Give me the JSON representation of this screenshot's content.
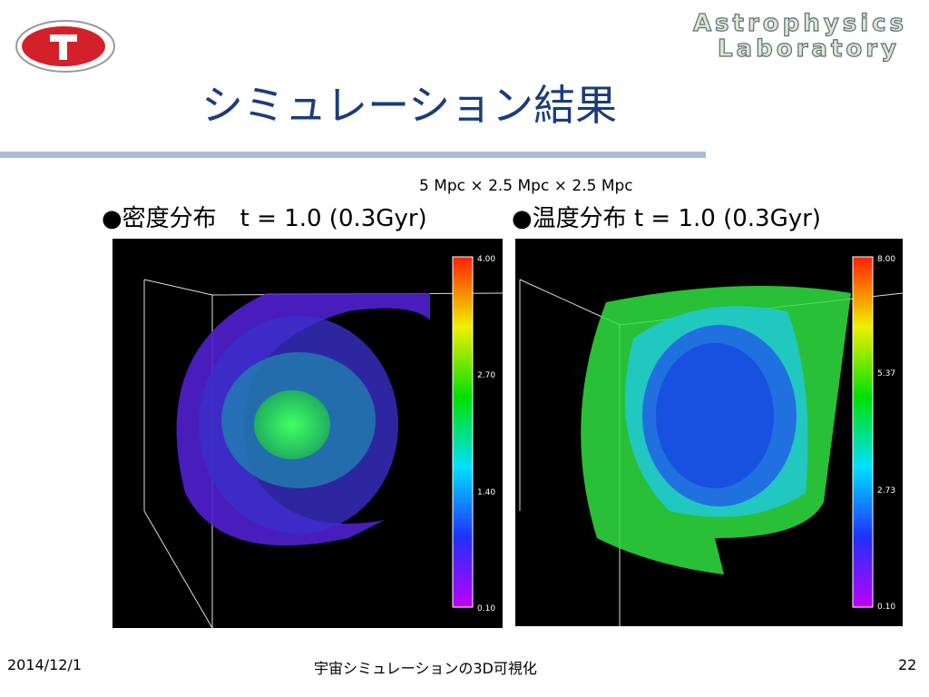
{
  "header": {
    "lab_line1": "Astrophysics",
    "lab_line2": "Laboratory",
    "title": "シミュレーション結果"
  },
  "caption": "5 Mpc × 2.5 Mpc × 2.5 Mpc",
  "panels": [
    {
      "label": "●密度分布　t = 1.0 (0.3Gyr)",
      "colorbar": [
        "4.00",
        "2.70",
        "1.40",
        "0.10"
      ]
    },
    {
      "label": "●温度分布 t = 1.0 (0.3Gyr)",
      "colorbar": [
        "8.00",
        "5.37",
        "2.73",
        "0.10"
      ]
    }
  ],
  "footer": {
    "date": "2014/12/1",
    "center": "宇宙シミュレーションの3D可視化",
    "page": "22"
  }
}
